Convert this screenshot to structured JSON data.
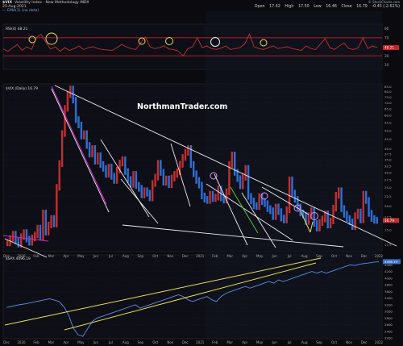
{
  "header": {
    "title": "$VIX",
    "subtitle": "Volatility Index - New Methodology INDX",
    "date": "25-Aug-2021",
    "overlay": "— EMA(1) (no data)",
    "quote_open_label": "Open",
    "quote_open": "17.42",
    "quote_high_label": "High",
    "quote_high": "17.50",
    "quote_low_label": "Low",
    "quote_low": "16.46",
    "quote_close_label": "Close",
    "quote_close": "16.79",
    "quote_change": "-0.45 (-2.61%)",
    "brand": "© StockCharts.com"
  },
  "watermark": "NorthmanTrader.com",
  "colors": {
    "bg": "#0b0b0f",
    "panel": "#0e0e16",
    "shade": "#111420",
    "grid": "#2a2a35",
    "red": "#c23030",
    "blue": "#2d6fd6",
    "trend": "#f0f0f0",
    "yellow": "#e8e050",
    "circle": "#e38cf0",
    "rsi_red": "#c8202a"
  },
  "chart_data": [
    {
      "type": "line",
      "title": "RSI(4) 48.21",
      "legend_label": "RSI(4) 48.21",
      "series": [
        {
          "name": "RSI(4)",
          "values": [
            45,
            40,
            48,
            55,
            42,
            50,
            44,
            70,
            78,
            60,
            45,
            50,
            40,
            48,
            42,
            46,
            52,
            44,
            48,
            50,
            46,
            44,
            43,
            42,
            48,
            55,
            50,
            46,
            44,
            58,
            72,
            50,
            46,
            48,
            52,
            45,
            44,
            40,
            30,
            46,
            50,
            70,
            48,
            52,
            46,
            44,
            47,
            52,
            44,
            46,
            48,
            56,
            78,
            50,
            46,
            44,
            48,
            52,
            46,
            48,
            50,
            46,
            44,
            42,
            52,
            46,
            44,
            56,
            68,
            48,
            44,
            52,
            58,
            46,
            44,
            48,
            70,
            46,
            52,
            48
          ]
        }
      ],
      "ylim": [
        0,
        100
      ],
      "ytick_labels": [
        "90",
        "70",
        "48.21",
        "30",
        "10"
      ],
      "reference_lines": [
        70,
        30
      ],
      "current_value": "48.21"
    },
    {
      "type": "line",
      "title": "$VIX (Daily) 16.79",
      "legend_label": "$VIX (Daily) 16.79",
      "y_scale": "log",
      "ylim": [
        11.5,
        88
      ],
      "ytick_labels": [
        "85.0",
        "80.0",
        "75.0",
        "70.0",
        "65.0",
        "60.0",
        "55.0",
        "50.0",
        "45.0",
        "40.0",
        "37.5",
        "35.0",
        "32.5",
        "30.0",
        "27.5",
        "25.0",
        "22.5",
        "20.0",
        "17.5",
        "15.0",
        "12.5"
      ],
      "last_value": "16.79",
      "x_tick_labels": [
        "Dec",
        "2020",
        "Feb",
        "Mar",
        "Apr",
        "May",
        "Jun",
        "Jul",
        "Aug",
        "Sep",
        "Oct",
        "Nov",
        "Dec",
        "2021",
        "Feb",
        "Mar",
        "Apr",
        "May",
        "Jun",
        "Jul",
        "Aug",
        "Sep",
        "Oct",
        "Nov",
        "Dec",
        "2022"
      ],
      "series": [
        {
          "name": "$VIX",
          "values": [
            12.8,
            13.5,
            14.2,
            13.1,
            12.6,
            13.8,
            14.5,
            13.4,
            12.9,
            13.6,
            14.1,
            15.3,
            13.7,
            18.4,
            14.6,
            15.9,
            17.2,
            16.1,
            25.1,
            33.5,
            48.2,
            65.4,
            77.2,
            82.7,
            72.3,
            57.1,
            53.5,
            46.8,
            48.1,
            41.7,
            37.6,
            40.2,
            34.5,
            36.8,
            33.1,
            31.6,
            29.4,
            32.1,
            28.7,
            27.3,
            30.9,
            33.7,
            35.1,
            30.4,
            27.6,
            26.1,
            29.4,
            25.7,
            24.8,
            22.9,
            24.1,
            23.4,
            22.1,
            26.3,
            28.4,
            33.6,
            30.1,
            26.7,
            27.8,
            25.9,
            28.1,
            29.4,
            30.3,
            33.2,
            36.1,
            38.4,
            40.2,
            33.1,
            29.6,
            27.3,
            25.8,
            22.6,
            21.7,
            21.4,
            23.1,
            21.9,
            22.3,
            24.6,
            22.1,
            21.5,
            23.8,
            33.1,
            37.2,
            30.1,
            27.9,
            25.6,
            28.4,
            31.6,
            22.5,
            21.3,
            20.1,
            19.9,
            22.4,
            21.1,
            20.6,
            19.4,
            18.9,
            17.6,
            19.8,
            18.7,
            17.3,
            16.9,
            19.1,
            27.5,
            23.4,
            21.7,
            19.8,
            18.4,
            17.9,
            16.6,
            17.8,
            18.9,
            16.2,
            15.3,
            16.4,
            17.1,
            18.2,
            15.9,
            16.7,
            19.5,
            22.8,
            24.1,
            19.4,
            18.1,
            17.2,
            16.5,
            15.6,
            17.8,
            18.6,
            16.9,
            23.1,
            21.4,
            18.3,
            17.2,
            16.8,
            16.79
          ]
        }
      ]
    },
    {
      "type": "line",
      "title": "$SPX 4496.19",
      "legend_label": "$SPX 4496.19",
      "ylim": [
        2180,
        4700
      ],
      "ytick_labels": [
        "4496.19",
        "4400",
        "4200",
        "4000",
        "3800",
        "3600",
        "3400",
        "3200",
        "3000",
        "2800",
        "2600",
        "2400",
        "2200"
      ],
      "x_tick_labels": [
        "Dec",
        "2020",
        "Feb",
        "Mar",
        "Apr",
        "May",
        "Jun",
        "Jul",
        "Aug",
        "Sep",
        "Oct",
        "Nov",
        "Dec",
        "2021",
        "Feb",
        "Mar",
        "Apr",
        "May",
        "Jun",
        "Jul",
        "Aug",
        "Sep",
        "Oct",
        "Nov",
        "Dec",
        "2022"
      ],
      "last_value": "4496.19",
      "series": [
        {
          "name": "$SPX",
          "values": [
            3120,
            3150,
            3180,
            3210,
            3230,
            3260,
            3290,
            3320,
            3350,
            3380,
            3340,
            3300,
            3150,
            2900,
            2500,
            2300,
            2250,
            2480,
            2700,
            2800,
            2850,
            2900,
            2950,
            3000,
            3050,
            3100,
            3150,
            3200,
            3100,
            3150,
            3200,
            3250,
            3300,
            3350,
            3400,
            3450,
            3500,
            3450,
            3350,
            3300,
            3350,
            3400,
            3450,
            3350,
            3300,
            3450,
            3550,
            3600,
            3650,
            3700,
            3750,
            3700,
            3750,
            3800,
            3850,
            3900,
            3850,
            3950,
            3900,
            3950,
            4000,
            4050,
            4100,
            4150,
            4200,
            4150,
            4200,
            4150,
            4200,
            4250,
            4300,
            4350,
            4400,
            4380,
            4420,
            4440,
            4460,
            4480,
            4496
          ]
        }
      ]
    }
  ]
}
